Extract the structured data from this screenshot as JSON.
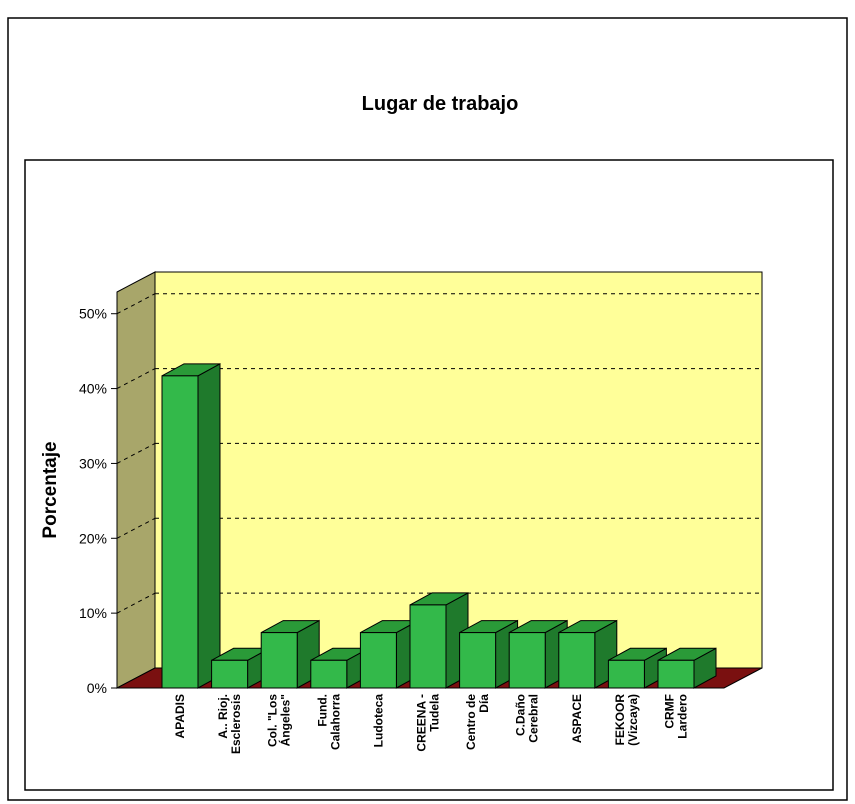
{
  "chart_data": {
    "type": "bar3d",
    "title": "Lugar de trabajo",
    "y_label": "Porcentaje",
    "categories": [
      "APADIS",
      "A.. Rioj.\nEsclerosis",
      "Col. \"Los\nÁngeles\"",
      "Fund.\nCalahorra",
      "Ludoteca",
      "CREENA -\nTudela",
      "Centro de\nDía",
      "C.Daño\nCerebral",
      "ASPACE",
      "FEKOOR\n(Vizcaya)",
      "CRMF\nLardero"
    ],
    "values": [
      41.7,
      3.7,
      7.4,
      3.7,
      7.4,
      11.1,
      7.4,
      7.4,
      7.4,
      3.7,
      3.7
    ],
    "color": "#33b94a",
    "ylim": [
      0,
      52.5
    ],
    "yticks": [
      {
        "value": 0,
        "label": "0%"
      },
      {
        "value": 10,
        "label": "10%"
      },
      {
        "value": 20,
        "label": "20%"
      },
      {
        "value": 30,
        "label": "30%"
      },
      {
        "value": 40,
        "label": "40%"
      },
      {
        "value": 50,
        "label": "50%"
      }
    ],
    "grid": true
  }
}
